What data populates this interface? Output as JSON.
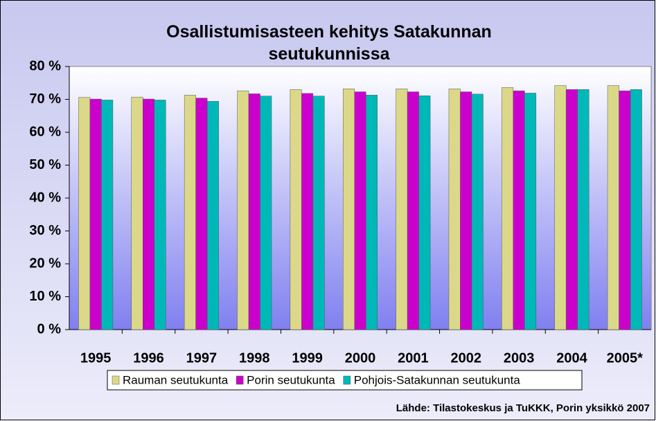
{
  "chart_data": {
    "type": "bar",
    "title": "Osallistumisasteen kehitys Satakunnan seutukunnissa",
    "source": "Lähde: Tilastokeskus ja TuKKK, Porin yksikkö 2007",
    "categories": [
      "1995",
      "1996",
      "1997",
      "1998",
      "1999",
      "2000",
      "2001",
      "2002",
      "2003",
      "2004",
      "2005*"
    ],
    "series": [
      {
        "name": "Rauman seutukunta",
        "color": "#dcd88a",
        "values": [
          70.6,
          70.7,
          71.3,
          72.6,
          73.0,
          73.2,
          73.2,
          73.2,
          73.6,
          74.2,
          74.2
        ]
      },
      {
        "name": "Porin seutukunta",
        "color": "#cc00cc",
        "values": [
          70.1,
          70.1,
          70.4,
          71.7,
          71.8,
          72.3,
          72.3,
          72.3,
          72.6,
          73.0,
          72.6
        ]
      },
      {
        "name": "Pohjois-Satakunnan seutukunta",
        "color": "#00b8b8",
        "values": [
          69.8,
          69.8,
          69.4,
          71.0,
          71.0,
          71.3,
          71.1,
          71.6,
          71.9,
          73.0,
          73.0
        ]
      }
    ],
    "ylim": [
      0,
      80
    ],
    "yticks": [
      {
        "value": 0,
        "label": "0 %"
      },
      {
        "value": 10,
        "label": "10 %"
      },
      {
        "value": 20,
        "label": "20 %"
      },
      {
        "value": 30,
        "label": "30 %"
      },
      {
        "value": 40,
        "label": "40 %"
      },
      {
        "value": 50,
        "label": "50 %"
      },
      {
        "value": 60,
        "label": "60 %"
      },
      {
        "value": 70,
        "label": "70 %"
      },
      {
        "value": 80,
        "label": "80 %"
      }
    ],
    "grid": false,
    "legend": "bottom"
  }
}
